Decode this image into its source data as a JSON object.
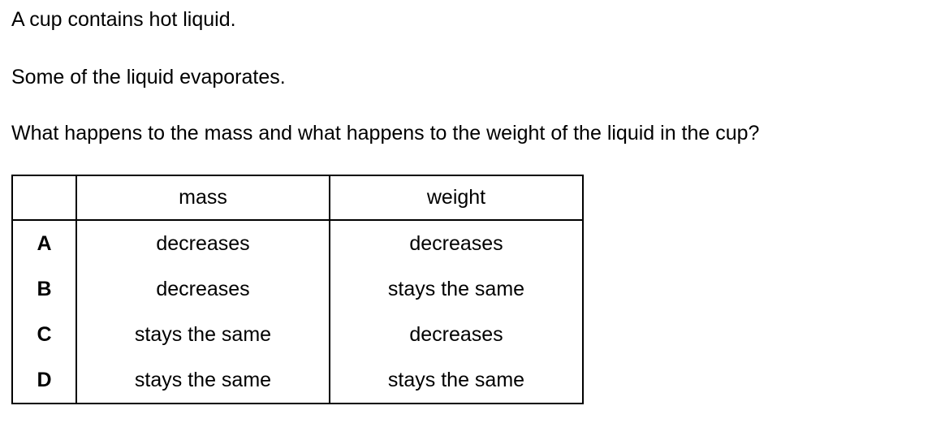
{
  "question": {
    "line1": "A cup contains hot liquid.",
    "line2": "Some of the liquid evaporates.",
    "line3": "What happens to the mass and what happens to the weight of the liquid in the cup?"
  },
  "table": {
    "headers": [
      "",
      "mass",
      "weight"
    ],
    "rows": [
      {
        "key": "A",
        "mass": "decreases",
        "weight": "decreases"
      },
      {
        "key": "B",
        "mass": "decreases",
        "weight": "stays the same"
      },
      {
        "key": "C",
        "mass": "stays the same",
        "weight": "decreases"
      },
      {
        "key": "D",
        "mass": "stays the same",
        "weight": "stays the same"
      }
    ]
  }
}
